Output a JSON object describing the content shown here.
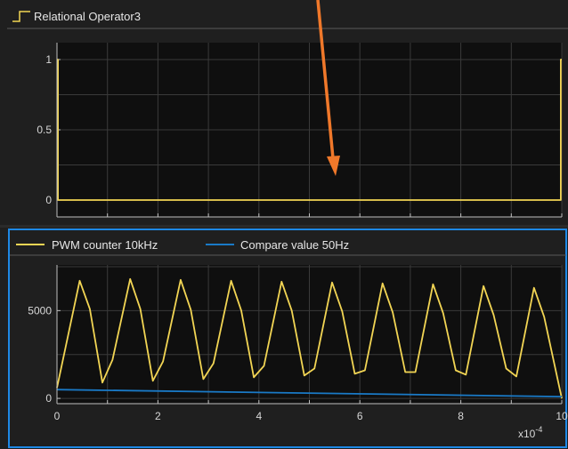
{
  "colors": {
    "panel_bg": "#1f1f1f",
    "plot_bg": "#0f0f0f",
    "grid": "#3a3a3a",
    "axis": "#bfbfbf",
    "tick_text": "#d8d8d8",
    "yellow": "#f2d554",
    "blue": "#1a7ac7",
    "selected_border": "#1e88e5",
    "arrow": "#f0782a"
  },
  "chart_data": [
    {
      "type": "line",
      "title": "",
      "legend_entries": [
        "Relational Operator3"
      ],
      "legend_position": "top-left",
      "grid": true,
      "xlim": [
        0,
        10
      ],
      "ylim": [
        -0.12,
        1.12
      ],
      "y_ticks": [
        0,
        0.5,
        1
      ],
      "y_tick_labels": [
        "0",
        "0.5",
        "1"
      ],
      "x_ticks": [
        0,
        2,
        4,
        6,
        8,
        10
      ],
      "x_tick_labels": [],
      "series": [
        {
          "name": "Relational Operator3",
          "color": "#f2d554",
          "x": [
            0,
            0.02,
            0.02,
            9.98,
            9.98,
            10
          ],
          "y": [
            1,
            1,
            0,
            0,
            1,
            1
          ]
        }
      ]
    },
    {
      "type": "line",
      "title": "",
      "legend_position": "top-left",
      "grid": true,
      "xlim": [
        0,
        10
      ],
      "ylim": [
        -300,
        7600
      ],
      "y_ticks": [
        0,
        5000
      ],
      "y_tick_labels": [
        "0",
        "5000"
      ],
      "x_ticks": [
        0,
        2,
        4,
        6,
        8,
        10
      ],
      "x_tick_labels": [
        "0",
        "2",
        "4",
        "6",
        "8",
        "10"
      ],
      "x_exponent_base": "x10",
      "x_exponent_power": "-4",
      "series": [
        {
          "name": "PWM counter 10kHz",
          "color": "#f2d554",
          "x": [
            0,
            0.45,
            0.65,
            0.9,
            1.1,
            1.45,
            1.65,
            1.9,
            2.1,
            2.45,
            2.65,
            2.9,
            3.1,
            3.45,
            3.65,
            3.9,
            4.1,
            4.45,
            4.65,
            4.9,
            5.1,
            5.45,
            5.65,
            5.9,
            6.1,
            6.45,
            6.65,
            6.9,
            7.1,
            7.45,
            7.65,
            7.9,
            8.1,
            8.45,
            8.65,
            8.9,
            9.1,
            9.45,
            9.65,
            10
          ],
          "y": [
            600,
            6700,
            5100,
            900,
            2200,
            6800,
            5100,
            1000,
            2100,
            6750,
            5050,
            1100,
            2000,
            6700,
            5000,
            1200,
            1850,
            6650,
            5000,
            1300,
            1700,
            6600,
            4950,
            1400,
            1600,
            6550,
            4900,
            1500,
            1500,
            6500,
            4850,
            1600,
            1350,
            6400,
            4750,
            1700,
            1250,
            6300,
            4650,
            0
          ]
        },
        {
          "name": "Compare value 50Hz",
          "color": "#1a7ac7",
          "x": [
            0,
            10
          ],
          "y": [
            500,
            100
          ]
        }
      ]
    }
  ]
}
